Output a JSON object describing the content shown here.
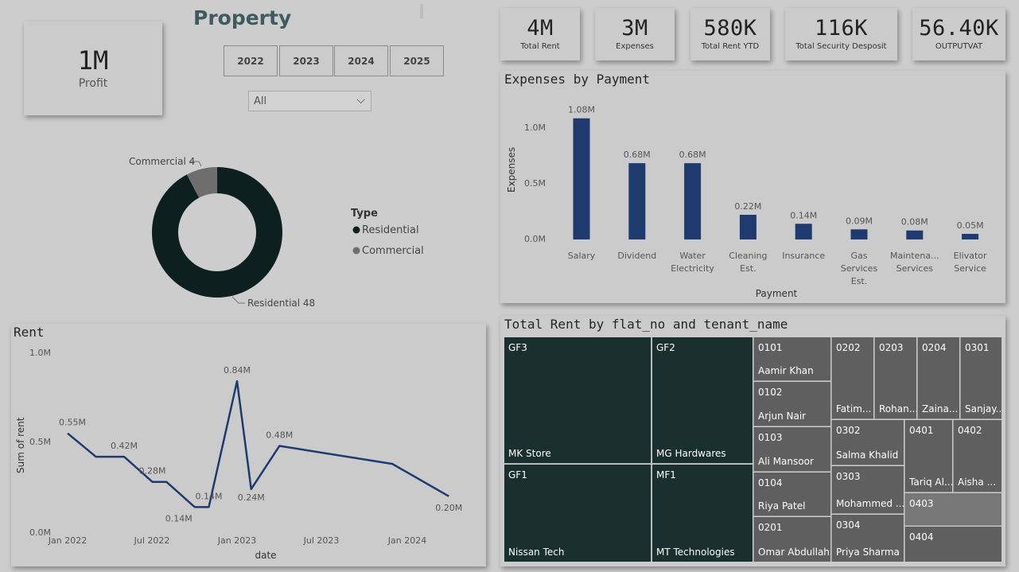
{
  "page": {
    "title": "Property"
  },
  "profit": {
    "value": "1M",
    "label": "Profit"
  },
  "years": [
    "2022",
    "2023",
    "2024",
    "2025"
  ],
  "filter": {
    "selected": "All"
  },
  "kpis": [
    {
      "value": "4M",
      "label": "Total Rent"
    },
    {
      "value": "3M",
      "label": "Expenses"
    },
    {
      "value": "580K",
      "label": "Total Rent YTD"
    },
    {
      "value": "116K",
      "label": "Total Security Desposit"
    },
    {
      "value": "56.40K",
      "label": "OUTPUTVAT"
    }
  ],
  "donut": {
    "legend_title": "Type",
    "label_commercial": "Commercial 4",
    "label_residential": "Residential 48",
    "legend_residential": "Residential",
    "legend_commercial": "Commercial",
    "colors": {
      "residential": "#0d1f1f",
      "commercial": "#6e6e6e"
    }
  },
  "expenses_chart": {
    "title": "Expenses by Payment",
    "xlabel": "Payment",
    "ylabel": "Expenses",
    "ticks": [
      "1.0M",
      "0.5M",
      "0.0M"
    ]
  },
  "rent_chart": {
    "title": "Rent",
    "xlabel": "date",
    "ylabel": "Sum of rent",
    "y_ticks": [
      "1.0M",
      "0.5M",
      "0.0M"
    ],
    "x_ticks": [
      "Jan 2022",
      "Jul 2022",
      "Jan 2023",
      "Jul 2023",
      "Jan 2024"
    ]
  },
  "chart_data": [
    {
      "type": "bar",
      "title": "Expenses by Payment",
      "xlabel": "Payment",
      "ylabel": "Expenses",
      "categories": [
        "Salary",
        "Dividend",
        "Water Electricity",
        "Cleaning Est.",
        "Insurance",
        "Gas Services Est.",
        "Maintena... Services",
        "Elivator Service"
      ],
      "category_lines": [
        [
          "Salary"
        ],
        [
          "Dividend"
        ],
        [
          "Water",
          "Electricity"
        ],
        [
          "Cleaning",
          "Est."
        ],
        [
          "Insurance"
        ],
        [
          "Gas",
          "Services",
          "Est."
        ],
        [
          "Maintena...",
          "Services"
        ],
        [
          "Elivator",
          "Service"
        ]
      ],
      "values": [
        1.08,
        0.68,
        0.68,
        0.22,
        0.14,
        0.09,
        0.08,
        0.05
      ],
      "value_labels": [
        "1.08M",
        "0.68M",
        "0.68M",
        "0.22M",
        "0.14M",
        "0.09M",
        "0.08M",
        "0.05M"
      ],
      "unit": "M",
      "ylim": [
        0,
        1.25
      ],
      "color": "#1f3a6e"
    },
    {
      "type": "line",
      "title": "Rent",
      "xlabel": "date",
      "ylabel": "Sum of rent",
      "x": [
        "2022-01",
        "2022-03",
        "2022-05",
        "2022-07",
        "2022-08",
        "2022-10",
        "2022-11",
        "2023-01",
        "2023-02",
        "2023-04",
        "2023-12",
        "2024-04"
      ],
      "y": [
        0.55,
        0.42,
        0.42,
        0.28,
        0.28,
        0.14,
        0.14,
        0.84,
        0.24,
        0.48,
        0.38,
        0.2
      ],
      "point_labels": [
        "0.55M",
        "",
        "0.42M",
        "0.28M",
        "",
        "0.14M",
        "0.14M",
        "0.84M",
        "0.24M",
        "0.48M",
        "",
        "0.20M"
      ],
      "ylim": [
        0,
        1.0
      ],
      "color": "#1f3a6e"
    },
    {
      "type": "pie",
      "labels": [
        "Residential",
        "Commercial"
      ],
      "values": [
        48,
        4
      ]
    }
  ],
  "treemap": {
    "title": "Total Rent by flat_no and tenant_name",
    "cells": [
      {
        "flat": "GF3",
        "tenant": "MK Store"
      },
      {
        "flat": "GF2",
        "tenant": "MG Hardwares"
      },
      {
        "flat": "GF1",
        "tenant": "Nissan Tech"
      },
      {
        "flat": "MF1",
        "tenant": "MT Technologies"
      },
      {
        "flat": "0101",
        "tenant": "Aamir Khan"
      },
      {
        "flat": "0102",
        "tenant": "Arjun Nair"
      },
      {
        "flat": "0103",
        "tenant": "Ali Mansoor"
      },
      {
        "flat": "0104",
        "tenant": "Riya Patel"
      },
      {
        "flat": "0201",
        "tenant": "Omar Abdullah"
      },
      {
        "flat": "0202",
        "tenant": "Fatim..."
      },
      {
        "flat": "0203",
        "tenant": "Rohan..."
      },
      {
        "flat": "0204",
        "tenant": "Zaina..."
      },
      {
        "flat": "0301",
        "tenant": "Sanjay..."
      },
      {
        "flat": "0302",
        "tenant": "Salma Khalid"
      },
      {
        "flat": "0303",
        "tenant": "Mohammed ..."
      },
      {
        "flat": "0304",
        "tenant": "Priya Sharma"
      },
      {
        "flat": "0401",
        "tenant": "Tariq Al..."
      },
      {
        "flat": "0402",
        "tenant": "Aisha ..."
      },
      {
        "flat": "0403",
        "tenant": ""
      },
      {
        "flat": "0404",
        "tenant": ""
      }
    ]
  }
}
